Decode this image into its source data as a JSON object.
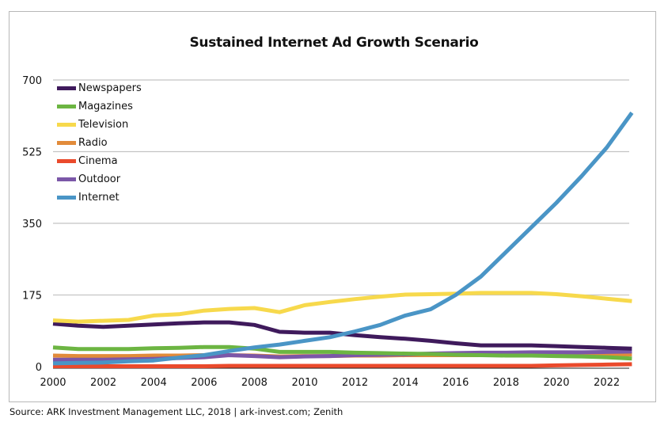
{
  "chart_data": {
    "type": "line",
    "title": "Sustained Internet Ad Growth Scenario",
    "xlabel": "",
    "ylabel": "",
    "x": [
      2000,
      2001,
      2002,
      2003,
      2004,
      2005,
      2006,
      2007,
      2008,
      2009,
      2010,
      2011,
      2012,
      2013,
      2014,
      2015,
      2016,
      2017,
      2018,
      2019,
      2020,
      2021,
      2022,
      2023
    ],
    "xlim": [
      2000,
      2023
    ],
    "ylim": [
      0,
      700
    ],
    "yticks": [
      0,
      175,
      350,
      525,
      700
    ],
    "ytick_labels": [
      "0",
      "175",
      "350",
      "525",
      "700"
    ],
    "xticks": [
      2000,
      2002,
      2004,
      2006,
      2008,
      2010,
      2012,
      2014,
      2016,
      2018,
      2020,
      2022
    ],
    "xtick_labels": [
      "2000",
      "2002",
      "2004",
      "2006",
      "2008",
      "2010",
      "2012",
      "2014",
      "2016",
      "2018",
      "2020",
      "2022"
    ],
    "grid": "horizontal",
    "legend_position": "top-left",
    "series": [
      {
        "name": "Newspapers",
        "color": "#3f1a5c",
        "values": [
          105,
          100,
          97,
          100,
          103,
          106,
          108,
          108,
          102,
          85,
          83,
          83,
          77,
          72,
          68,
          63,
          57,
          52,
          52,
          52,
          50,
          48,
          46,
          44
        ]
      },
      {
        "name": "Magazines",
        "color": "#6cb542",
        "values": [
          47,
          43,
          43,
          43,
          45,
          46,
          48,
          48,
          44,
          36,
          36,
          36,
          34,
          33,
          32,
          31,
          29,
          28,
          27,
          27,
          26,
          25,
          23,
          20
        ]
      },
      {
        "name": "Television",
        "color": "#f7d94c",
        "values": [
          113,
          110,
          112,
          114,
          125,
          128,
          137,
          141,
          143,
          133,
          150,
          158,
          165,
          171,
          176,
          177,
          178,
          180,
          180,
          180,
          177,
          172,
          166,
          160
        ]
      },
      {
        "name": "Radio",
        "color": "#e28b3a",
        "values": [
          27,
          26,
          26,
          26,
          27,
          27,
          28,
          28,
          27,
          25,
          26,
          26,
          27,
          27,
          28,
          28,
          28,
          28,
          29,
          29,
          29,
          30,
          30,
          30
        ]
      },
      {
        "name": "Cinema",
        "color": "#ea4a2c",
        "values": [
          1,
          1,
          1,
          1,
          1,
          1,
          1,
          2,
          2,
          2,
          2,
          2,
          2,
          2,
          2,
          2,
          2,
          2,
          2,
          2,
          3,
          4,
          5,
          6
        ]
      },
      {
        "name": "Outdoor",
        "color": "#7b57a8",
        "values": [
          17,
          17,
          17,
          18,
          19,
          21,
          23,
          28,
          26,
          23,
          25,
          26,
          28,
          29,
          30,
          32,
          33,
          34,
          34,
          35,
          35,
          35,
          36,
          37
        ]
      },
      {
        "name": "Internet",
        "color": "#4a95c6",
        "values": [
          8,
          9,
          10,
          13,
          15,
          22,
          28,
          38,
          47,
          54,
          63,
          72,
          86,
          102,
          125,
          140,
          175,
          220,
          280,
          340,
          400,
          465,
          535,
          620
        ]
      }
    ],
    "source": "Source: ARK Investment Management LLC, 2018 | ark-invest.com; Zenith"
  }
}
